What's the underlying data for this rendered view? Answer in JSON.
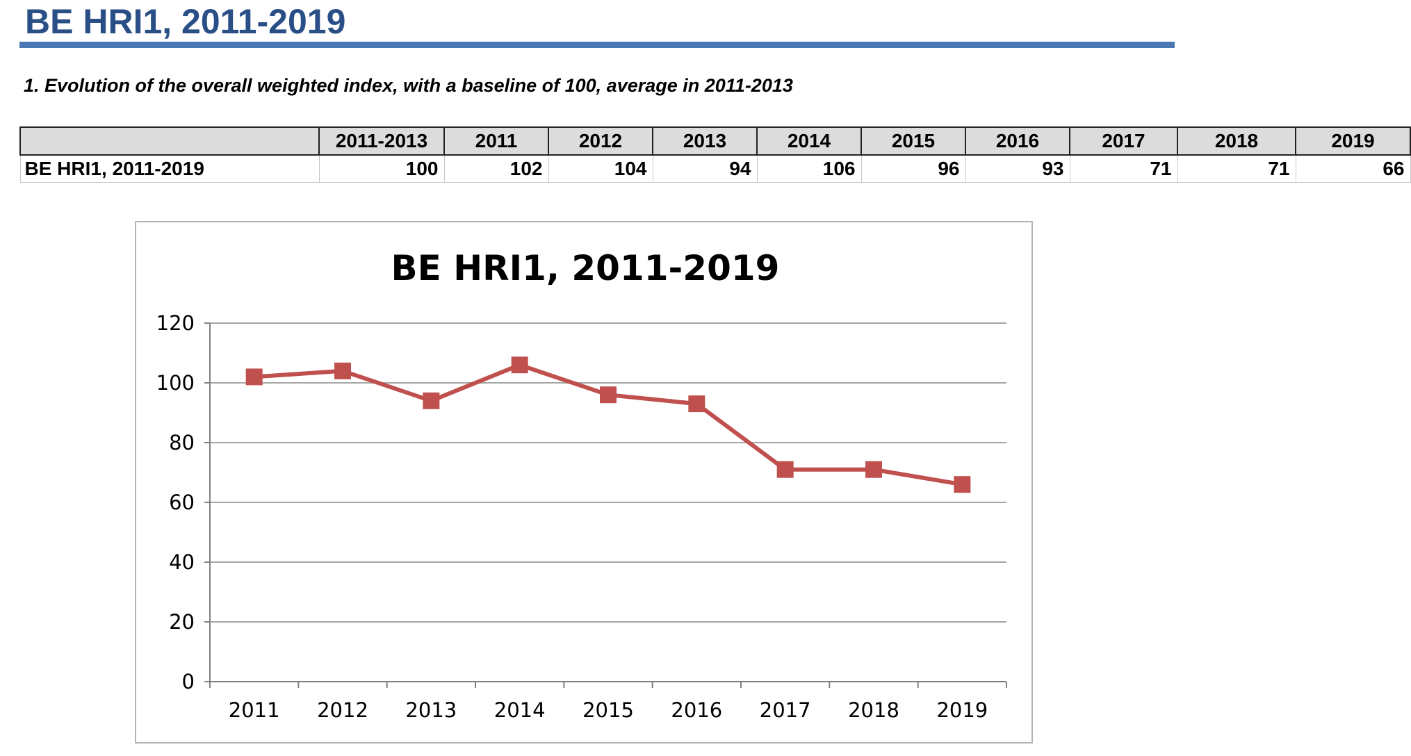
{
  "page": {
    "title": "BE HRI1, 2011-2019",
    "section_heading": "1. Evolution of the overall weighted index, with a baseline of 100, average in 2011-2013"
  },
  "table": {
    "columns": [
      "",
      "2011-2013",
      "2011",
      "2012",
      "2013",
      "2014",
      "2015",
      "2016",
      "2017",
      "2018",
      "2019"
    ],
    "rows": [
      {
        "label": "BE HRI1, 2011-2019",
        "values": [
          "100",
          "102",
          "104",
          "94",
          "106",
          "96",
          "93",
          "71",
          "71",
          "66"
        ]
      }
    ]
  },
  "chart_data": {
    "type": "line",
    "title": "BE HRI1, 2011-2019",
    "xlabel": "",
    "ylabel": "",
    "categories": [
      "2011",
      "2012",
      "2013",
      "2014",
      "2015",
      "2016",
      "2017",
      "2018",
      "2019"
    ],
    "series": [
      {
        "name": "BE HRI1, 2011-2019",
        "values": [
          102,
          104,
          94,
          106,
          96,
          93,
          71,
          71,
          66
        ]
      }
    ],
    "ylim": [
      0,
      120
    ],
    "yticks": [
      0,
      20,
      40,
      60,
      80,
      100,
      120
    ],
    "grid": true,
    "legend": "none",
    "colors": {
      "line": "#c0504d",
      "marker": "#c0504d",
      "grid": "#a6a6a6",
      "axis": "#808080"
    }
  }
}
